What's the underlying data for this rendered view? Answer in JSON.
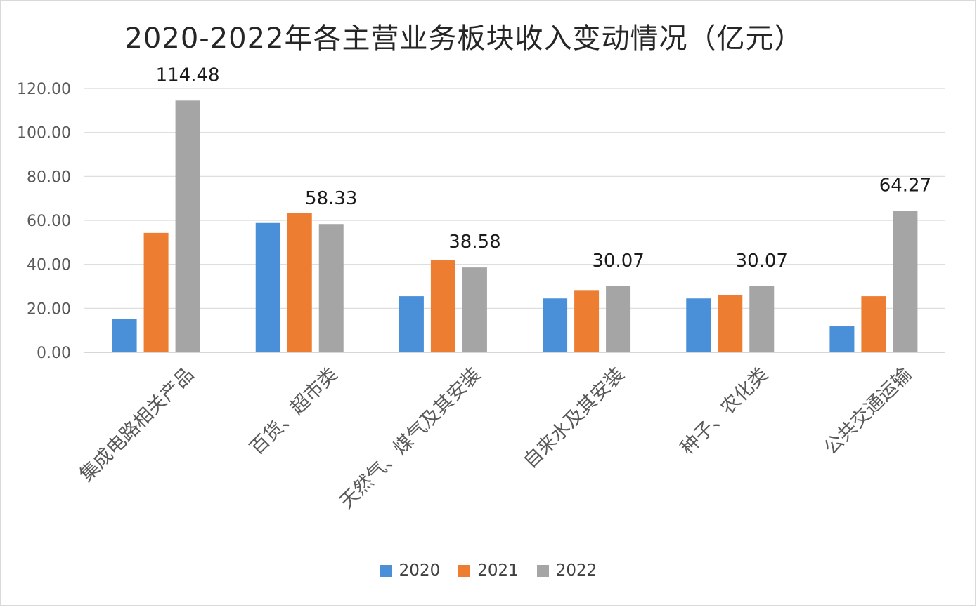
{
  "chart_data": {
    "type": "bar",
    "title": "2020-2022年各主营业务板块收入变动情况（亿元）",
    "xlabel": "",
    "ylabel": "",
    "ylim": [
      0,
      120
    ],
    "yticks": [
      "0.00",
      "20.00",
      "40.00",
      "60.00",
      "80.00",
      "100.00",
      "120.00"
    ],
    "grid": true,
    "legend_position": "bottom",
    "categories": [
      "集成电路相关产品",
      "百货、超市类",
      "天然气、煤气及其安装",
      "自来水及其安装",
      "种子、农化类",
      "公共交通运输"
    ],
    "series": [
      {
        "name": "2020",
        "color": "#4a90d9",
        "values": [
          15.0,
          58.8,
          25.5,
          24.5,
          24.5,
          11.8
        ]
      },
      {
        "name": "2021",
        "color": "#ed7d31",
        "values": [
          54.3,
          63.3,
          41.8,
          28.3,
          26.0,
          25.5
        ]
      },
      {
        "name": "2022",
        "color": "#a5a5a5",
        "values": [
          114.48,
          58.33,
          38.58,
          30.07,
          30.07,
          64.27
        ]
      }
    ],
    "data_labels": [
      "114.48",
      "58.33",
      "38.58",
      "30.07",
      "30.07",
      "64.27"
    ]
  }
}
